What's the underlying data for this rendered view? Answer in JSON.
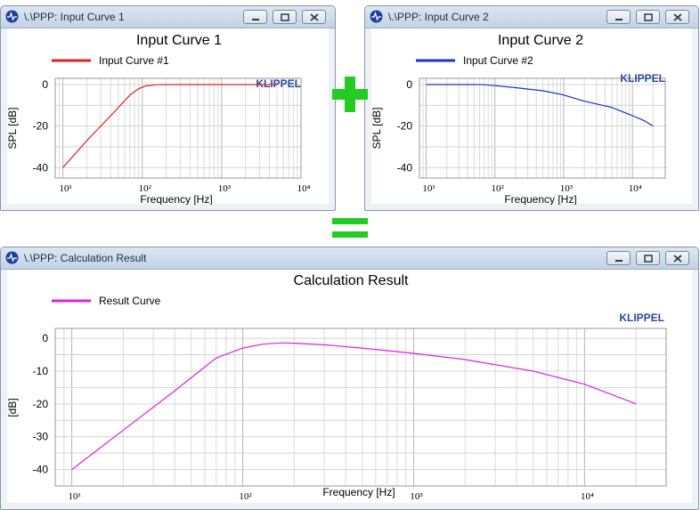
{
  "windows": [
    {
      "title": "\\.\\PPP: Input Curve 1",
      "chart": {
        "type": "line",
        "title": "Input Curve 1",
        "xlabel": "Frequency [Hz]",
        "ylabel": "SPL [dB]",
        "xscale": "log",
        "xlim": [
          8,
          10000
        ],
        "ylim": [
          -45,
          3
        ],
        "yticks": [
          0,
          -20,
          -40
        ],
        "xticks": [
          {
            "v": 10,
            "label": "10¹"
          },
          {
            "v": 100,
            "label": "10²"
          },
          {
            "v": 1000,
            "label": "10³"
          },
          {
            "v": 10000,
            "label": "10⁴"
          }
        ],
        "grid": true,
        "legend_position": "top-left",
        "watermark": "KLIPPEL",
        "series": [
          {
            "name": "Input Curve #1",
            "color": "#e02020",
            "x": [
              10,
              20,
              40,
              70,
              90,
              110,
              150,
              200,
              500,
              1000,
              3000,
              5000
            ],
            "y": [
              -40,
              -27,
              -15,
              -5,
              -2,
              -0.7,
              -0.1,
              0,
              0,
              0,
              0,
              0
            ]
          }
        ]
      }
    },
    {
      "title": "\\.\\PPP: Input Curve 2",
      "chart": {
        "type": "line",
        "title": "Input Curve 2",
        "xlabel": "Frequency [Hz]",
        "ylabel": "SPL [dB]",
        "xscale": "log",
        "xlim": [
          8,
          30000
        ],
        "ylim": [
          -45,
          3
        ],
        "yticks": [
          0,
          -20,
          -40
        ],
        "xticks": [
          {
            "v": 10,
            "label": "10¹"
          },
          {
            "v": 100,
            "label": "10²"
          },
          {
            "v": 1000,
            "label": "10³"
          },
          {
            "v": 10000,
            "label": "10⁴"
          }
        ],
        "grid": true,
        "legend_position": "top-left",
        "watermark": "KLIPPEL",
        "series": [
          {
            "name": "Input Curve #2",
            "color": "#1c2fd0",
            "x": [
              10,
              50,
              70,
              100,
              200,
              500,
              1000,
              2000,
              5000,
              10000,
              15000,
              20000
            ],
            "y": [
              0,
              0,
              -0.1,
              -0.5,
              -1.5,
              -3,
              -5,
              -8,
              -11,
              -15,
              -17.5,
              -20
            ]
          }
        ]
      }
    },
    {
      "title": "\\.\\PPP: Calculation Result",
      "chart": {
        "type": "line",
        "title": "Calculation Result",
        "xlabel": "Frequency [Hz]",
        "ylabel": "[dB]",
        "xscale": "log",
        "xlim": [
          8,
          30000
        ],
        "ylim": [
          -45,
          3
        ],
        "yticks": [
          0,
          -10,
          -20,
          -30,
          -40
        ],
        "xticks": [
          {
            "v": 10,
            "label": "10¹"
          },
          {
            "v": 100,
            "label": "10²"
          },
          {
            "v": 1000,
            "label": "10³"
          },
          {
            "v": 10000,
            "label": "10⁴"
          }
        ],
        "grid": true,
        "legend_position": "top-left",
        "watermark": "KLIPPEL",
        "series": [
          {
            "name": "Result Curve",
            "color": "#e020e0",
            "x": [
              10,
              20,
              40,
              70,
              100,
              130,
              170,
              200,
              300,
              500,
              1000,
              2000,
              5000,
              10000,
              15000,
              20000
            ],
            "y": [
              -40,
              -28,
              -16,
              -6,
              -3,
              -1.8,
              -1.4,
              -1.5,
              -2,
              -3,
              -4.6,
              -6.5,
              -10,
              -14,
              -17.5,
              -20
            ]
          }
        ]
      }
    }
  ],
  "operators": {
    "plus_color": "#22cc22",
    "equals_color": "#22cc22"
  }
}
